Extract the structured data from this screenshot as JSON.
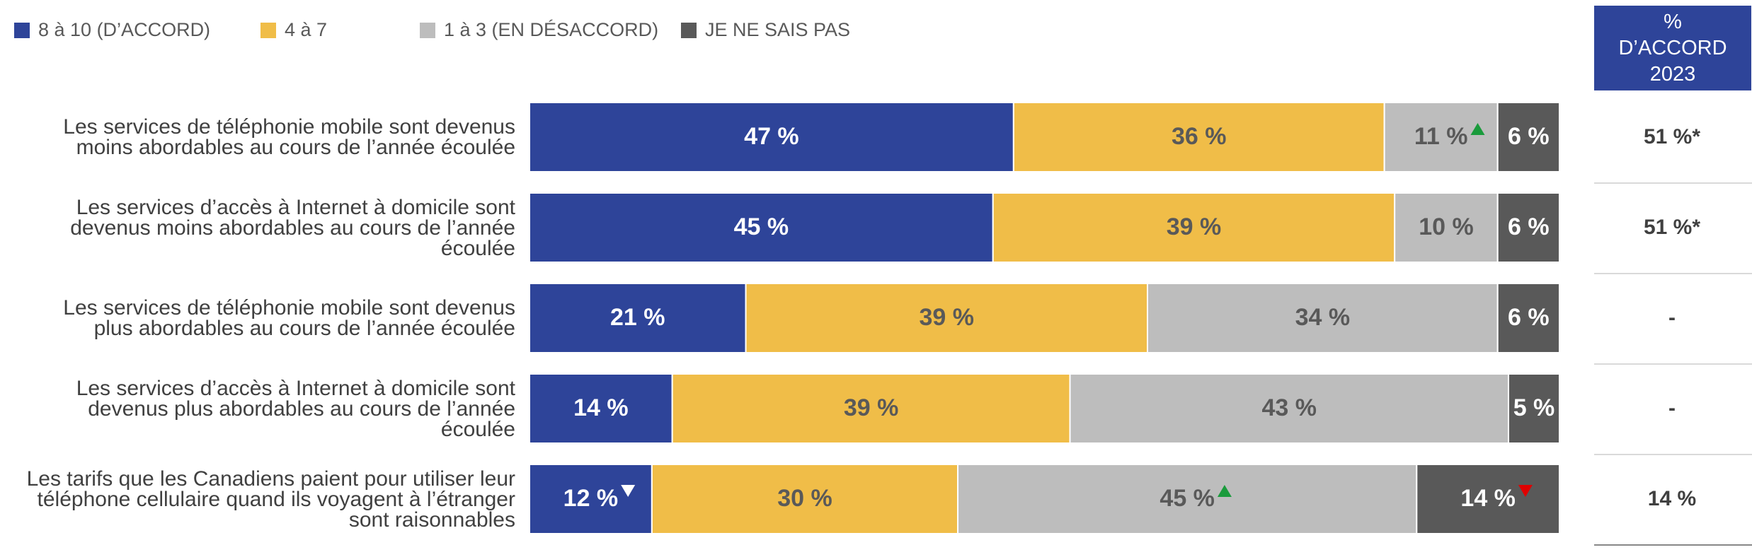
{
  "chart_data": {
    "type": "stacked-bar-horizontal",
    "categories": [
      "Les services de téléphonie mobile sont devenus moins abordables au cours de l’année écoulée",
      "Les services d’accès à Internet à domicile sont devenus moins abordables au cours de l’année écoulée",
      "Les services de téléphonie mobile sont devenus plus abordables au cours de l’année écoulée",
      "Les services d’accès à Internet à domicile sont devenus plus abordables au cours de l’année écoulée",
      "Les tarifs que les Canadiens paient pour utiliser leur téléphone cellulaire quand ils voyagent à l’étranger sont raisonnables"
    ],
    "series": [
      {
        "name": "8 à 10 (D’ACCORD)",
        "color": "#2e4499",
        "label_color": "#ffffff",
        "values": [
          47,
          45,
          21,
          14,
          12
        ],
        "value_labels": [
          "47 %",
          "45 %",
          "21 %",
          "14 %",
          "12 %"
        ],
        "arrows": [
          null,
          null,
          null,
          null,
          {
            "dir": "down",
            "color": "#ffffff"
          }
        ]
      },
      {
        "name": "4 à 7",
        "color": "#f0bd48",
        "label_color": "#595959",
        "values": [
          36,
          39,
          39,
          39,
          30
        ],
        "value_labels": [
          "36 %",
          "39 %",
          "39 %",
          "39 %",
          "30 %"
        ],
        "arrows": [
          null,
          null,
          null,
          null,
          null
        ]
      },
      {
        "name": "1 à 3 (EN DÉSACCORD)",
        "color": "#bdbdbd",
        "label_color": "#595959",
        "values": [
          11,
          10,
          34,
          43,
          45
        ],
        "value_labels": [
          "11 %",
          "10 %",
          "34 %",
          "43 %",
          "45 %"
        ],
        "arrows": [
          {
            "dir": "up",
            "color": "#1a9b3c"
          },
          null,
          null,
          null,
          {
            "dir": "up",
            "color": "#1a9b3c"
          }
        ]
      },
      {
        "name": "JE NE SAIS PAS",
        "color": "#595959",
        "label_color": "#ffffff",
        "values": [
          6,
          6,
          6,
          5,
          14
        ],
        "value_labels": [
          "6 %",
          "6 %",
          "6 %",
          "5 %",
          "14 %"
        ],
        "arrows": [
          null,
          null,
          null,
          null,
          {
            "dir": "down",
            "color": "#e00000"
          }
        ]
      }
    ],
    "side_table": {
      "header": "% D’ACCORD 2023",
      "values": [
        "51 %*",
        "51 %*",
        "-",
        "-",
        "14 %"
      ]
    }
  }
}
